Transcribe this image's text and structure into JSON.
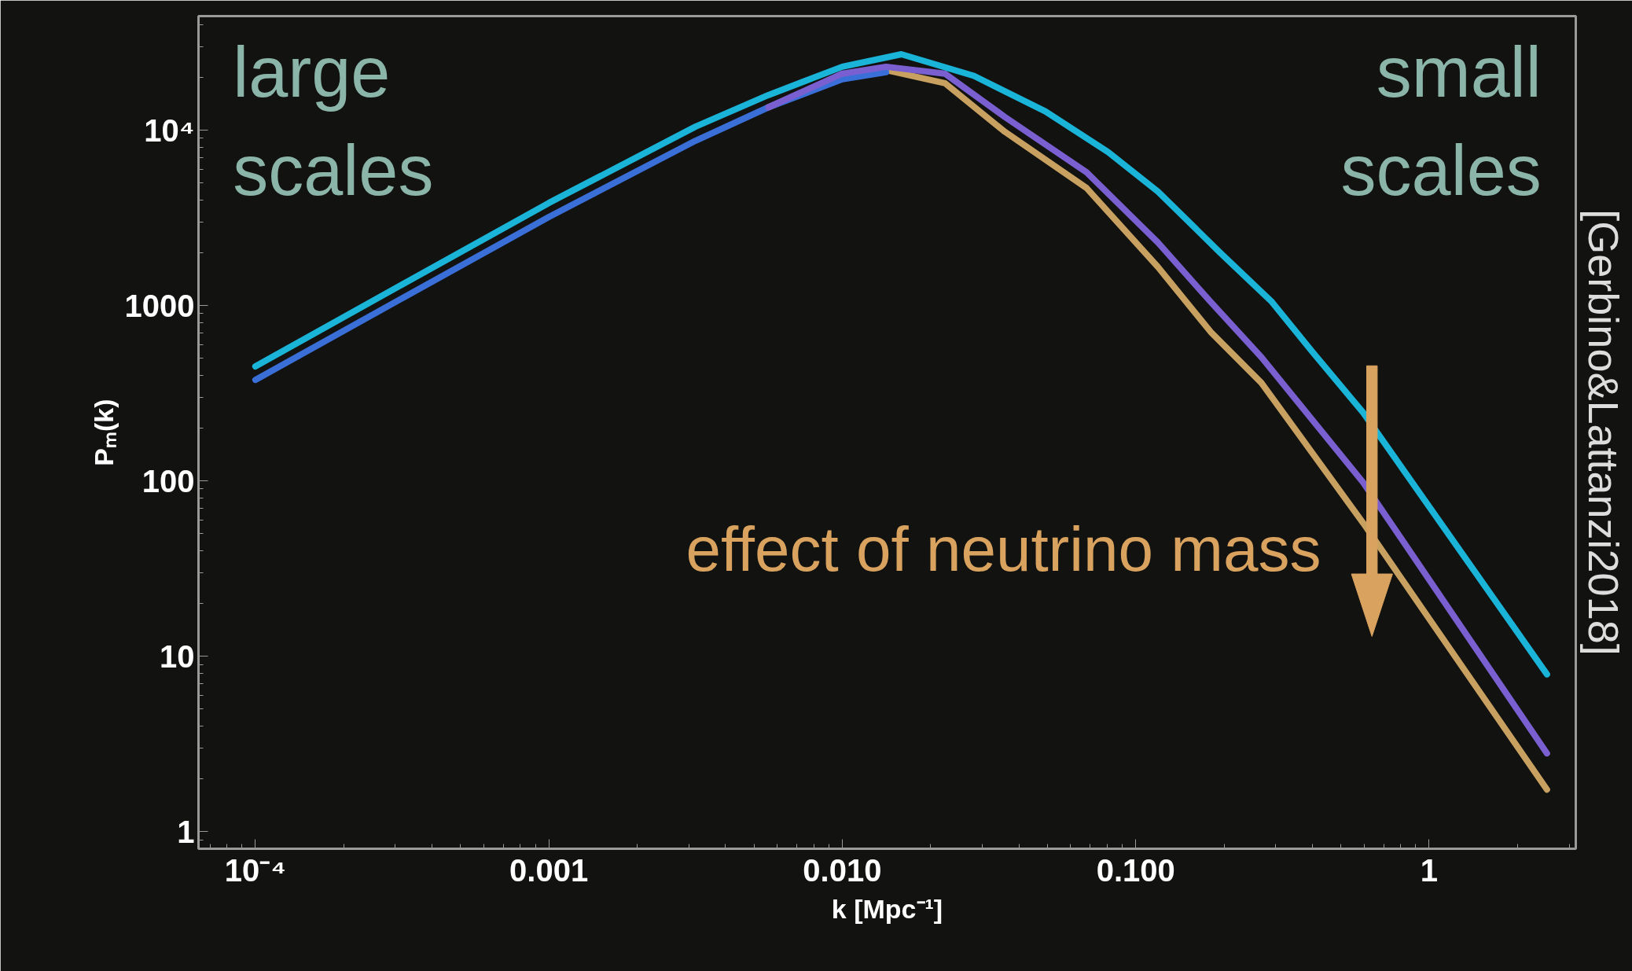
{
  "chart_data": {
    "type": "line",
    "xlabel": "k [Mpc⁻¹]",
    "ylabel": "Pₘ(k)",
    "log": "xy",
    "grid": false,
    "xlim": [
      6.4e-05,
      3.16
    ],
    "ylim": [
      0.8,
      44700
    ],
    "xticks": [
      {
        "value": 0.0001,
        "label": "10⁻⁴"
      },
      0.001,
      {
        "value": 0.01,
        "label": "0.010"
      },
      {
        "value": 0.1,
        "label": "0.100"
      },
      1
    ],
    "yticks": [
      1,
      10,
      100,
      1000,
      {
        "value": 10000,
        "label": "10⁴"
      }
    ],
    "series": [
      {
        "color": "#c8a060",
        "x": [
          0.0056,
          0.01,
          0.0141,
          0.0224,
          0.0358,
          0.068,
          0.119,
          0.18,
          0.268,
          0.596,
          2.52
        ],
        "values": [
          13500,
          20500,
          22000,
          18500,
          9800,
          4680,
          1660,
          708,
          363,
          57.5,
          1.74
        ]
      },
      {
        "color": "#3a6fd8",
        "x": [
          0.0001,
          0.000316,
          0.001,
          0.00316,
          0.0056,
          0.01,
          0.0141
        ],
        "values": [
          377,
          1100,
          3200,
          8700,
          13500,
          19500,
          21400
        ]
      },
      {
        "color": "#7a5fd0",
        "x": [
          0.0056,
          0.01,
          0.0141,
          0.0224,
          0.0358,
          0.068,
          0.119,
          0.18,
          0.268,
          0.596,
          2.52
        ],
        "values": [
          13500,
          21000,
          23000,
          21000,
          11900,
          5750,
          2290,
          1050,
          508,
          98,
          2.8
        ]
      },
      {
        "color": "#1ab4d8",
        "x": [
          0.0001,
          0.000316,
          0.001,
          0.00316,
          0.0056,
          0.01,
          0.0159,
          0.0281,
          0.0492,
          0.0805,
          0.119,
          0.193,
          0.291,
          0.4,
          0.596,
          2.52
        ],
        "values": [
          450,
          1318,
          3846,
          10470,
          15850,
          23000,
          27100,
          20400,
          12800,
          7500,
          4470,
          2020,
          1050,
          545,
          245,
          7.9
        ]
      }
    ],
    "annotations": [
      "large\nscales",
      "small\nscales",
      "effect of neutrino mass",
      "[Gerbino&Lattanzi2018]"
    ]
  }
}
